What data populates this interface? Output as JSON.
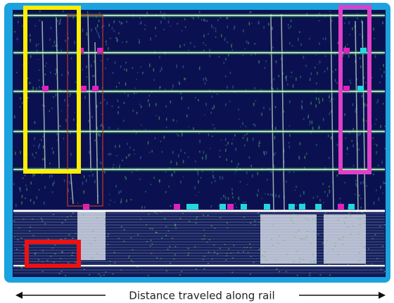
{
  "caption": "Distance traveled along rail"
}
